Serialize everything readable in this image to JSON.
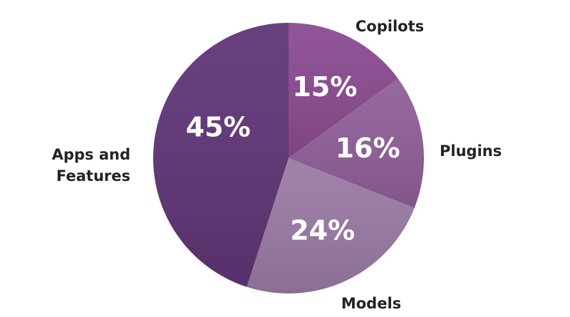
{
  "chart_data": {
    "type": "pie",
    "slices": [
      {
        "label": "Copilots",
        "value": 15,
        "display": "15%",
        "color": "#8a4a90"
      },
      {
        "label": "Plugins",
        "value": 16,
        "display": "16%",
        "color": "#8f5f98"
      },
      {
        "label": "Models",
        "value": 24,
        "display": "24%",
        "color": "#9a7aa4"
      },
      {
        "label": "Apps and Features",
        "value": 45,
        "display": "45%",
        "color": "#5f3476"
      }
    ],
    "start_angle_deg": 0,
    "direction": "clockwise",
    "legend": "none",
    "labels_outside": true,
    "values_inside": true
  }
}
